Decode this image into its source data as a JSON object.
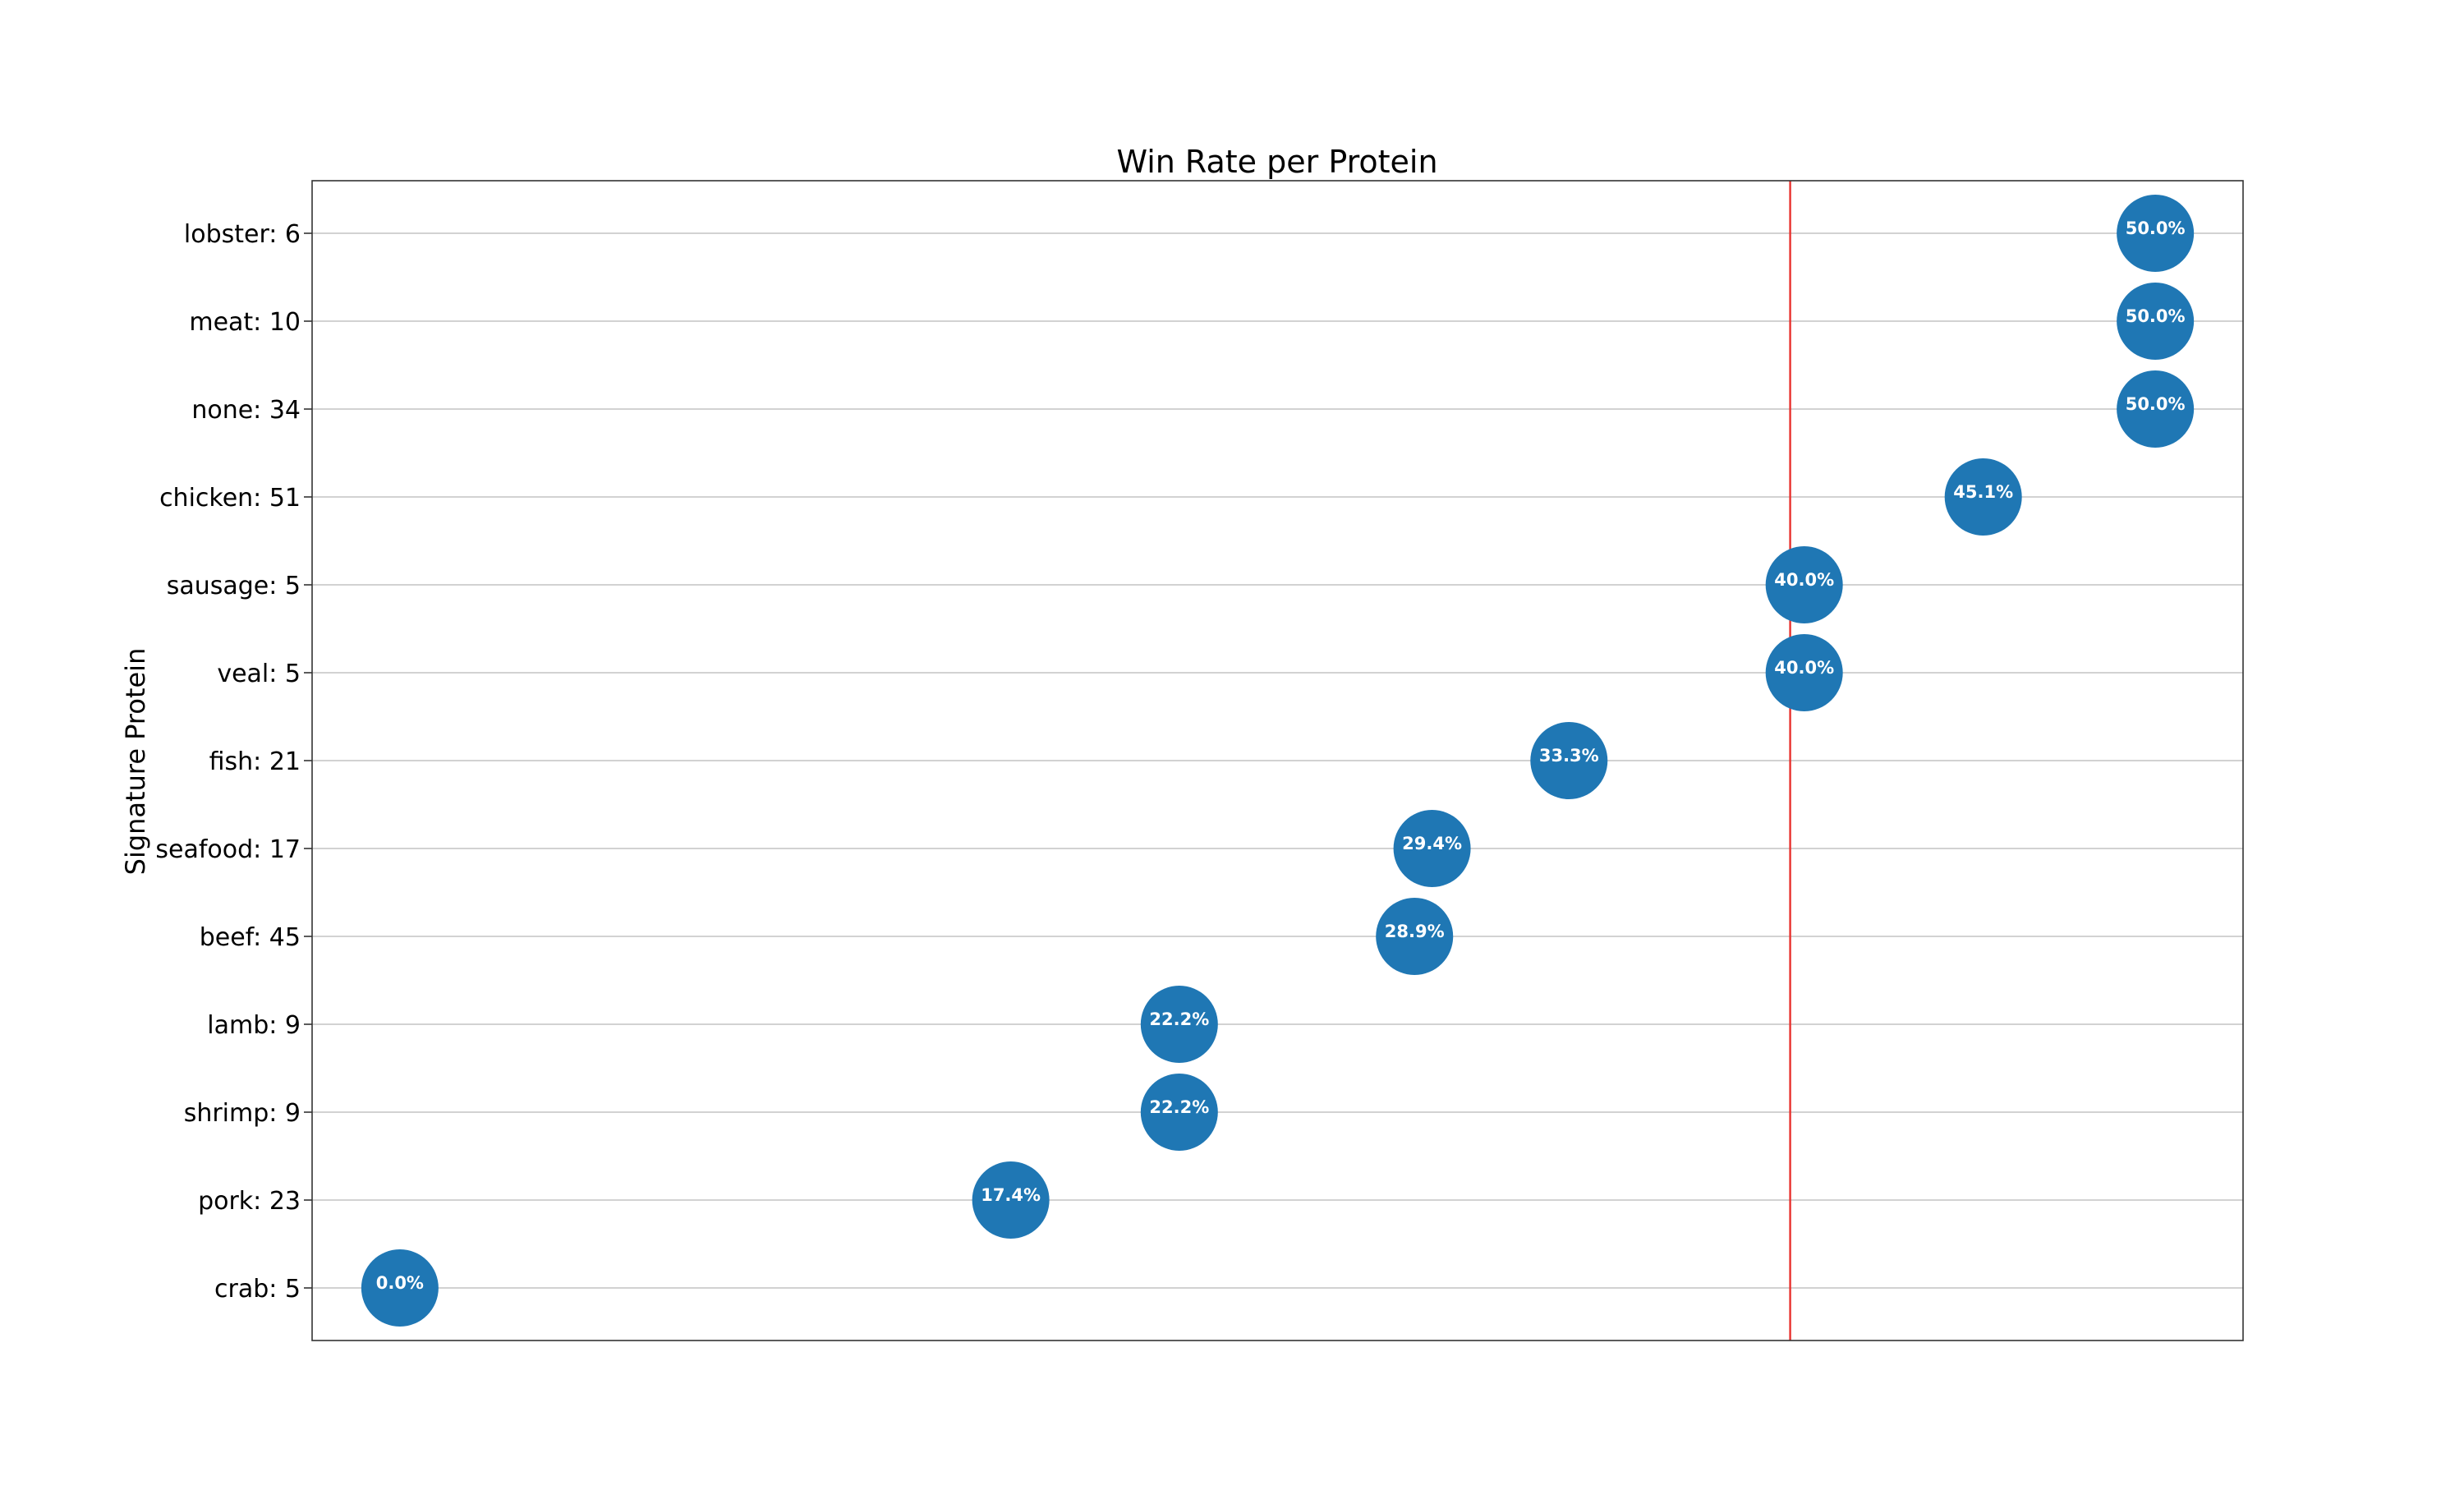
{
  "chart_data": {
    "type": "scatter",
    "title": "Win Rate per Protein",
    "xlabel": "",
    "ylabel": "Signature Protein",
    "xlim": [
      -0.025,
      0.525
    ],
    "reference_line": {
      "x": 0.396,
      "color": "#e8322e"
    },
    "grid": "horizontal",
    "marker_color": "#1f77b4",
    "categories": [
      "lobster: 6",
      "meat: 10",
      "none: 34",
      "chicken: 51",
      "sausage: 5",
      "veal: 5",
      "fish: 21",
      "seafood: 17",
      "beef: 45",
      "lamb: 9",
      "shrimp: 9",
      "pork: 23",
      "crab: 5"
    ],
    "values": [
      0.5,
      0.5,
      0.5,
      0.451,
      0.4,
      0.4,
      0.333,
      0.294,
      0.289,
      0.222,
      0.222,
      0.174,
      0.0
    ],
    "labels": [
      "50.0%",
      "50.0%",
      "50.0%",
      "45.1%",
      "40.0%",
      "40.0%",
      "33.3%",
      "29.4%",
      "28.9%",
      "22.2%",
      "22.2%",
      "17.4%",
      "0.0%"
    ]
  }
}
